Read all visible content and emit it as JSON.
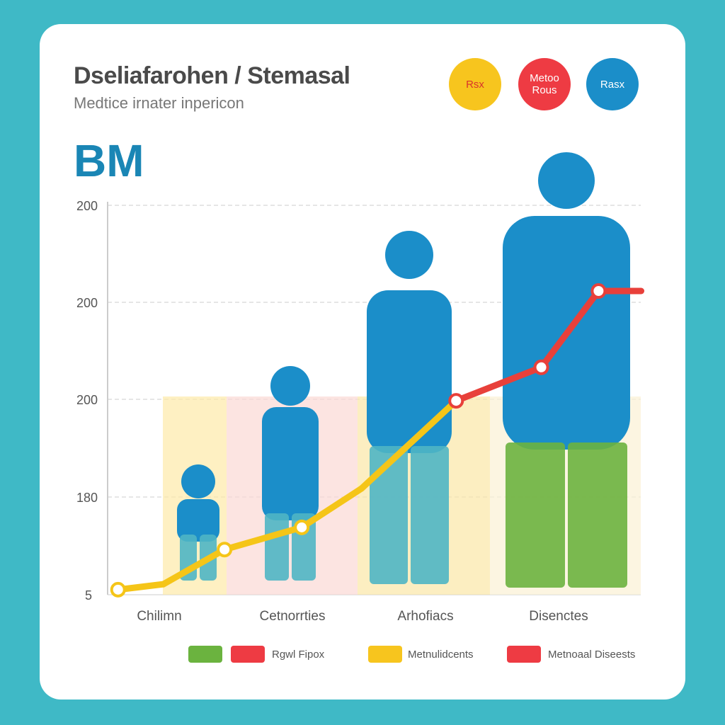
{
  "header": {
    "title": "Dseliafarohen / Stemasal",
    "subtitle": "Medtice irnater inpericon",
    "big_label": "BM",
    "badges": [
      {
        "label": "Rsx",
        "color": "#f7c51e",
        "text_color": "#d9342b"
      },
      {
        "label": "Metoo Rous",
        "color": "#ee3b43",
        "text_color": "#ffffff"
      },
      {
        "label": "Rasx",
        "color": "#1b8ec9",
        "text_color": "#ffffff"
      }
    ]
  },
  "chart_data": {
    "type": "line",
    "title": "BM",
    "y_tick_labels": [
      "200",
      "200",
      "200",
      "180",
      "5"
    ],
    "categories": [
      "Chilimn",
      "Cetnorrties",
      "Arhofiacs",
      "Disenctes"
    ],
    "series": [
      {
        "color": "#f5c518",
        "segment_colors": [
          "#f5c518",
          "#e8403a"
        ],
        "x": [
          -0.31,
          0.03,
          0.49,
          1.07,
          1.52,
          2.23,
          2.87,
          3.3,
          3.62
        ],
        "y": [
          1.3,
          2.7,
          11.6,
          17.3,
          27.3,
          49.8,
          58.4,
          78,
          78
        ],
        "y_units": "percent of axis height"
      }
    ],
    "grid": true,
    "legend": [
      {
        "label": "",
        "color": "#6bb33f"
      },
      {
        "label": "Rgwl Fipox",
        "color": "#ee3b43"
      },
      {
        "label": "Metnulidcents",
        "color": "#f7c51e"
      },
      {
        "label": "Metnoaal Diseests",
        "color": "#ee3b43"
      }
    ],
    "legend_position": "bottom",
    "silhouette_color": "#1b8ec9",
    "silhouettes": [
      "toddler",
      "child",
      "adult woman",
      "adult man"
    ]
  }
}
